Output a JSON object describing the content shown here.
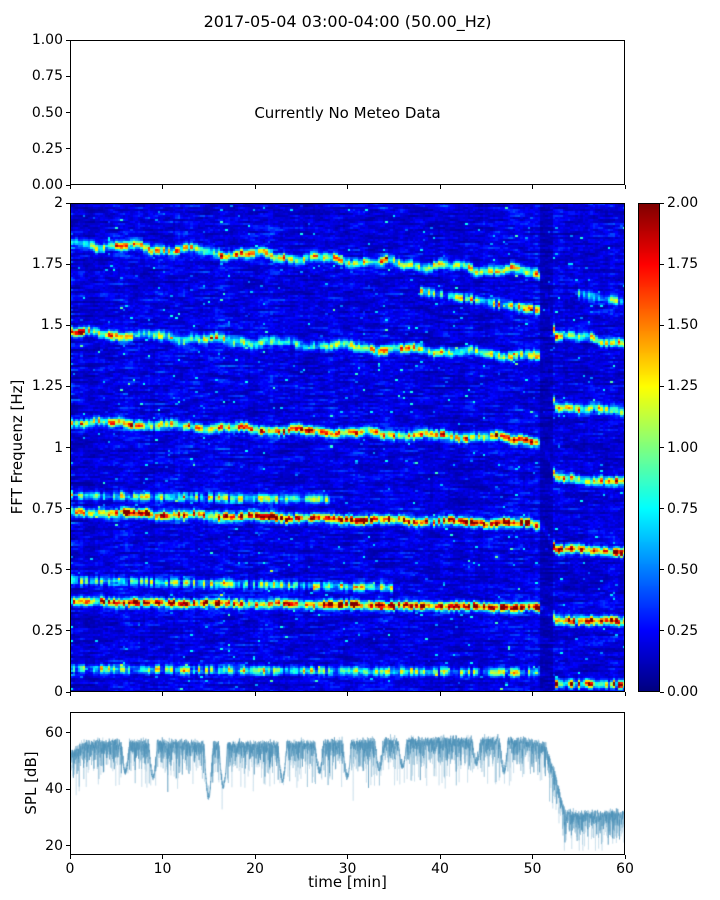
{
  "figure": {
    "title": "2017-05-04 03:00-04:00 (50.00_Hz)"
  },
  "chart_data": [
    {
      "type": "empty",
      "panel": "meteo",
      "annotation": "Currently No Meteo Data",
      "xlim": [
        0,
        60
      ],
      "ylim": [
        0,
        1
      ],
      "yticks": [
        1.0,
        0.75,
        0.5,
        0.25,
        0.0
      ],
      "ytick_labels": [
        "1.00",
        "0.75",
        "0.50",
        "0.25",
        "0.00"
      ],
      "grid": false
    },
    {
      "type": "heatmap",
      "panel": "spectrogram",
      "ylabel": "FFT Frequenz [Hz]",
      "xlim": [
        0,
        60
      ],
      "ylim": [
        0,
        2
      ],
      "yticks": [
        2,
        1.75,
        1.5,
        1.25,
        1,
        0.75,
        0.5,
        0.25,
        0
      ],
      "ytick_labels": [
        "2",
        "1.75",
        "1.5",
        "1.25",
        "1",
        "0.75",
        "0.5",
        "0.25",
        "0"
      ],
      "colormap": "jet",
      "clim": [
        0,
        2
      ],
      "colorbar": {
        "ticks": [
          2.0,
          1.75,
          1.5,
          1.25,
          1.0,
          0.75,
          0.5,
          0.25,
          0.0
        ],
        "tick_labels": [
          "2.00",
          "1.75",
          "1.50",
          "1.25",
          "1.00",
          "0.75",
          "0.50",
          "0.25",
          "0.00"
        ],
        "position": "right"
      },
      "noise_floor": {
        "mean": 0.18,
        "max": 0.55
      },
      "fundamental_track": [
        [
          0,
          0.368
        ],
        [
          20,
          0.358
        ],
        [
          50,
          0.344
        ],
        [
          51.2,
          0.34
        ],
        [
          52.6,
          0.292
        ],
        [
          60,
          0.286
        ]
      ],
      "harmonics": [
        {
          "k": 1,
          "amp": 1.95,
          "gate_floor": 0.55
        },
        {
          "k": 2,
          "amp": 1.95,
          "gate_floor": 0.55
        },
        {
          "k": 3,
          "amp": 1.8,
          "gate_floor": 0.35
        },
        {
          "k": 4,
          "amp": 1.45,
          "gate_floor": 0.22
        },
        {
          "k": 5,
          "amp": 1.7,
          "gate_floor": 0.3
        }
      ],
      "extra_bands": [
        {
          "track": [
            [
              0,
              0.455
            ],
            [
              35,
              0.425
            ]
          ],
          "amp": 1.0
        },
        {
          "track": [
            [
              0,
              0.805
            ],
            [
              28,
              0.788
            ]
          ],
          "amp": 0.95
        },
        {
          "track": [
            [
              38,
              1.64
            ],
            [
              52,
              1.555
            ]
          ],
          "amp": 1.25
        },
        {
          "track": [
            [
              0,
              0.09
            ],
            [
              52,
              0.075
            ]
          ],
          "amp": 1.05
        },
        {
          "track": [
            [
              52.6,
              0.032
            ],
            [
              60,
              0.027
            ]
          ],
          "amp": 2.1
        },
        {
          "track": [
            [
              55,
              1.63
            ],
            [
              60,
              1.6
            ]
          ],
          "amp": 0.85
        }
      ],
      "dropout": {
        "t_start": 50.9,
        "t_end": 52.3,
        "bg_factor": 0.55,
        "band_factor": 0.12
      }
    },
    {
      "type": "line",
      "panel": "spl",
      "xlabel": "time [min]",
      "ylabel": "SPL [dB]",
      "xlim": [
        0,
        60
      ],
      "ylim": [
        16.8,
        67.4
      ],
      "yticks": [
        60,
        40,
        20
      ],
      "ytick_labels": [
        "60",
        "40",
        "20"
      ],
      "xticks": [
        0,
        10,
        20,
        30,
        40,
        50,
        60
      ],
      "xtick_labels": [
        "0",
        "10",
        "20",
        "30",
        "40",
        "50",
        "60"
      ],
      "line_colors": [
        "#9cc3da",
        "#6fa8c9",
        "#4a8fb5"
      ],
      "envelope_db": [
        [
          0,
          53.5
        ],
        [
          1.5,
          57.5
        ],
        [
          10,
          57.5
        ],
        [
          20,
          57
        ],
        [
          28,
          57.5
        ],
        [
          33,
          58
        ],
        [
          40,
          58.5
        ],
        [
          47,
          58.5
        ],
        [
          50,
          58
        ],
        [
          51.5,
          56.5
        ],
        [
          52.5,
          47
        ],
        [
          53.5,
          33
        ],
        [
          55,
          32
        ],
        [
          60,
          32.5
        ]
      ],
      "dips_db": [
        [
          6,
          45
        ],
        [
          9,
          43
        ],
        [
          15,
          36
        ],
        [
          16.6,
          40
        ],
        [
          23,
          42
        ],
        [
          27,
          45
        ],
        [
          30,
          43
        ],
        [
          33.5,
          46
        ],
        [
          36,
          47
        ],
        [
          44,
          48
        ],
        [
          47,
          45
        ]
      ],
      "noise_spread_db": 6
    }
  ]
}
